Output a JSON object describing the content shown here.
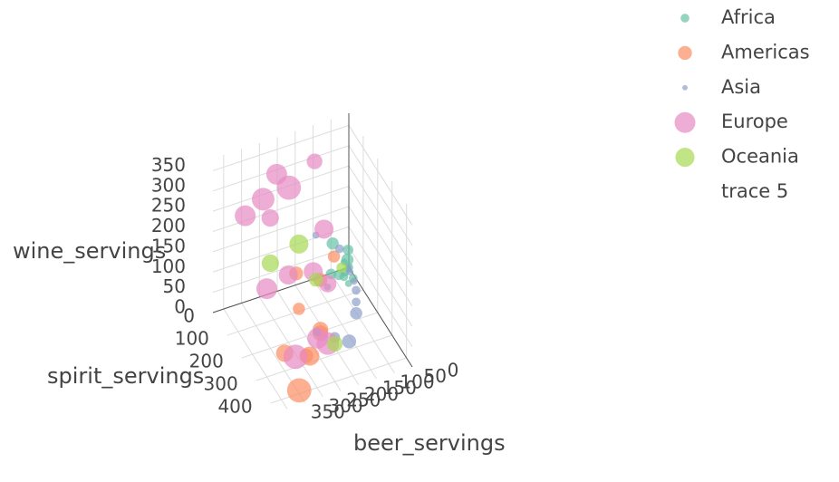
{
  "chart_data": {
    "type": "scatter3d",
    "x_title": "beer_servings",
    "y_title": "spirit_servings",
    "z_title": "wine_servings",
    "xlim": [
      0,
      380
    ],
    "ylim": [
      0,
      440
    ],
    "zlim": [
      0,
      380
    ],
    "xticks": [
      0,
      50,
      100,
      150,
      200,
      250,
      300,
      350
    ],
    "yticks": [
      0,
      100,
      200,
      300,
      400
    ],
    "zticks": [
      0,
      50,
      100,
      150,
      200,
      250,
      300,
      350
    ],
    "grid": true,
    "opacity": 0.7,
    "series": [
      {
        "name": "Africa",
        "color": "#66c2a5",
        "x": [
          0,
          5,
          20,
          40,
          15,
          10,
          30,
          60,
          8,
          25,
          3,
          50
        ],
        "y": [
          0,
          10,
          20,
          30,
          5,
          15,
          40,
          25,
          50,
          60,
          2,
          12
        ],
        "z": [
          0,
          2,
          5,
          10,
          20,
          30,
          8,
          15,
          3,
          1,
          45,
          80
        ],
        "size": [
          3,
          2,
          3,
          4,
          2,
          5,
          3,
          4,
          3,
          2,
          4,
          5
        ]
      },
      {
        "name": "Americas",
        "color": "#fc8d62",
        "x": [
          240,
          160,
          200,
          280,
          120,
          300,
          90,
          180,
          250,
          220
        ],
        "y": [
          300,
          200,
          150,
          250,
          100,
          400,
          120,
          250,
          350,
          180
        ],
        "z": [
          20,
          5,
          40,
          10,
          60,
          8,
          120,
          30,
          50,
          150
        ],
        "size": [
          6,
          7,
          5,
          8,
          6,
          12,
          5,
          7,
          9,
          6
        ]
      },
      {
        "name": "Asia",
        "color": "#8da0cb",
        "x": [
          0,
          5,
          10,
          20,
          40,
          60,
          80,
          120,
          140,
          170,
          100,
          30
        ],
        "y": [
          0,
          20,
          60,
          100,
          150,
          200,
          50,
          300,
          250,
          200,
          20,
          10
        ],
        "z": [
          0,
          1,
          2,
          5,
          10,
          16,
          3,
          20,
          8,
          2,
          120,
          60
        ],
        "size": [
          1,
          2,
          2,
          3,
          3,
          5,
          2,
          6,
          4,
          3,
          2,
          3
        ]
      },
      {
        "name": "Europe",
        "color": "#e78ac3",
        "x": [
          250,
          200,
          150,
          300,
          330,
          180,
          270,
          220,
          120,
          290,
          240,
          310,
          160,
          200
        ],
        "y": [
          120,
          80,
          200,
          150,
          100,
          300,
          250,
          400,
          60,
          350,
          50,
          200,
          150,
          280
        ],
        "z": [
          370,
          300,
          250,
          340,
          280,
          180,
          200,
          100,
          330,
          60,
          220,
          150,
          120,
          40
        ],
        "size": [
          10,
          12,
          9,
          11,
          10,
          8,
          9,
          11,
          7,
          12,
          8,
          10,
          9,
          10
        ]
      },
      {
        "name": "Oceania",
        "color": "#a6d854",
        "x": [
          200,
          100,
          300,
          20,
          180
        ],
        "y": [
          150,
          20,
          200,
          0,
          350
        ],
        "z": [
          200,
          10,
          210,
          5,
          60
        ],
        "size": [
          9,
          6,
          8,
          4,
          7
        ]
      },
      {
        "name": "trace 5",
        "x": [],
        "y": [],
        "z": [],
        "size": []
      }
    ]
  }
}
